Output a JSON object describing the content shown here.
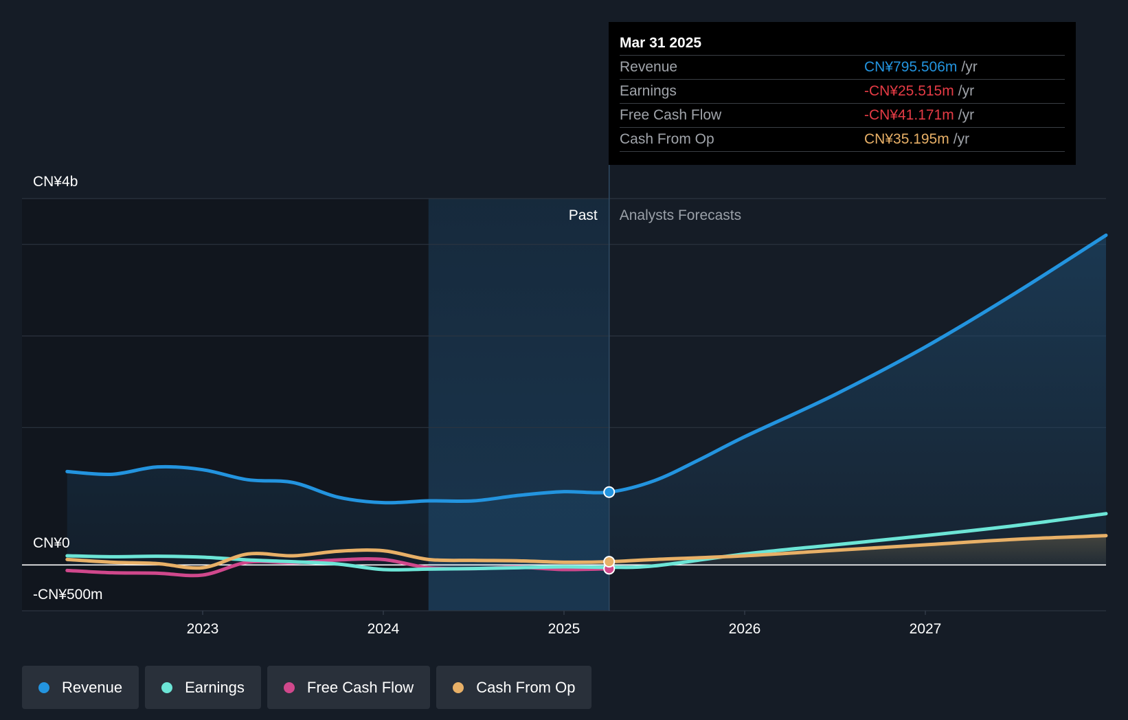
{
  "chart_data": {
    "type": "line",
    "y_axis": {
      "top_label": "CN¥4b",
      "zero_label": "CN¥0",
      "bottom_label": "-CN¥500m",
      "ylim": [
        -500,
        4000
      ],
      "unit": "CN¥m"
    },
    "x_ticks": [
      2023,
      2024,
      2025,
      2026,
      2027
    ],
    "xlim": [
      2022.0,
      2028.0
    ],
    "regions": {
      "past_label": "Past",
      "forecast_label": "Analysts Forecasts",
      "divider_x": 2025.25,
      "highlight_start_x": 2024.25
    },
    "series": [
      {
        "name": "Revenue",
        "color": "#2394df",
        "x": [
          2022.25,
          2022.5,
          2022.75,
          2023.0,
          2023.25,
          2023.5,
          2023.75,
          2024.0,
          2024.25,
          2024.5,
          2024.75,
          2025.0,
          2025.25,
          2025.5,
          2025.75,
          2026.0,
          2026.5,
          2027.0,
          2027.5,
          2028.0
        ],
        "values": [
          1020,
          990,
          1070,
          1040,
          930,
          900,
          740,
          680,
          700,
          700,
          760,
          800,
          795.5,
          920,
          1150,
          1400,
          1860,
          2380,
          2970,
          3600
        ]
      },
      {
        "name": "Earnings",
        "color": "#6ce5d6",
        "x": [
          2022.25,
          2022.5,
          2022.75,
          2023.0,
          2023.25,
          2023.5,
          2023.75,
          2024.0,
          2024.25,
          2024.5,
          2024.75,
          2025.0,
          2025.25,
          2025.5,
          2026.0,
          2026.5,
          2027.0,
          2027.5,
          2028.0
        ],
        "values": [
          100,
          90,
          95,
          85,
          55,
          35,
          10,
          -50,
          -45,
          -40,
          -30,
          -20,
          -25.5,
          -10,
          120,
          220,
          320,
          430,
          560
        ]
      },
      {
        "name": "Free Cash Flow",
        "color": "#d0488c",
        "x": [
          2022.25,
          2022.5,
          2022.75,
          2023.0,
          2023.25,
          2023.5,
          2023.75,
          2024.0,
          2024.25,
          2024.5,
          2024.75,
          2025.0,
          2025.25
        ],
        "values": [
          -60,
          -85,
          -90,
          -110,
          30,
          25,
          55,
          60,
          -30,
          -40,
          -25,
          -50,
          -41.2
        ]
      },
      {
        "name": "Cash From Op",
        "color": "#e8b067",
        "x": [
          2022.25,
          2022.5,
          2022.75,
          2023.0,
          2023.25,
          2023.5,
          2023.75,
          2024.0,
          2024.25,
          2024.5,
          2024.75,
          2025.0,
          2025.25,
          2025.5,
          2026.0,
          2026.5,
          2027.0,
          2027.5,
          2028.0
        ],
        "values": [
          60,
          30,
          15,
          -30,
          120,
          100,
          150,
          155,
          60,
          50,
          45,
          30,
          35.2,
          60,
          100,
          160,
          220,
          280,
          320
        ]
      }
    ]
  },
  "tooltip": {
    "date": "Mar 31 2025",
    "unit": "/yr",
    "rows": [
      {
        "label": "Revenue",
        "value": "CN¥795.506m",
        "color": "#2394df"
      },
      {
        "label": "Earnings",
        "value": "-CN¥25.515m",
        "color": "#e53b45"
      },
      {
        "label": "Free Cash Flow",
        "value": "-CN¥41.171m",
        "color": "#e53b45"
      },
      {
        "label": "Cash From Op",
        "value": "CN¥35.195m",
        "color": "#e8b067"
      }
    ]
  },
  "legend": [
    {
      "label": "Revenue",
      "color": "#2394df"
    },
    {
      "label": "Earnings",
      "color": "#6ce5d6"
    },
    {
      "label": "Free Cash Flow",
      "color": "#d0488c"
    },
    {
      "label": "Cash From Op",
      "color": "#e8b067"
    }
  ]
}
